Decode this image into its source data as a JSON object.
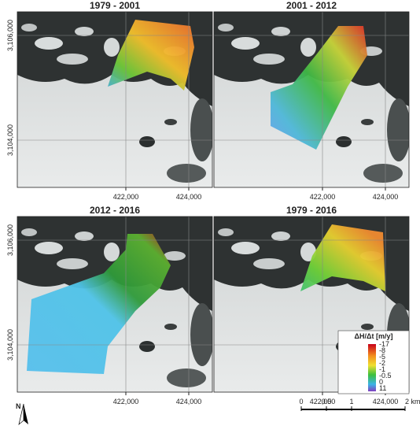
{
  "panels": [
    {
      "title": "1979 - 2001",
      "x_labels": [
        "422,000",
        "424,000"
      ],
      "y_labels": [
        "3,106,000",
        "3,104,000"
      ]
    },
    {
      "title": "2001 - 2012",
      "x_labels": [
        "422,000",
        "424,000"
      ]
    },
    {
      "title": "2012 - 2016",
      "x_labels": [
        "422,000",
        "424,000"
      ],
      "y_labels": [
        "3,106,000",
        "3,104,000"
      ]
    },
    {
      "title": "1979 - 2016",
      "x_labels": [
        "422,000",
        "424,000"
      ]
    }
  ],
  "legend": {
    "title": "ΔH/Δt [m/y]",
    "labels": [
      "-17",
      "-8",
      "-5",
      "-2",
      "-1",
      "-0.5",
      "0",
      "11"
    ]
  },
  "scale_bar": {
    "labels": [
      "0",
      "0.5",
      "1",
      "2 km"
    ]
  },
  "north": "N"
}
